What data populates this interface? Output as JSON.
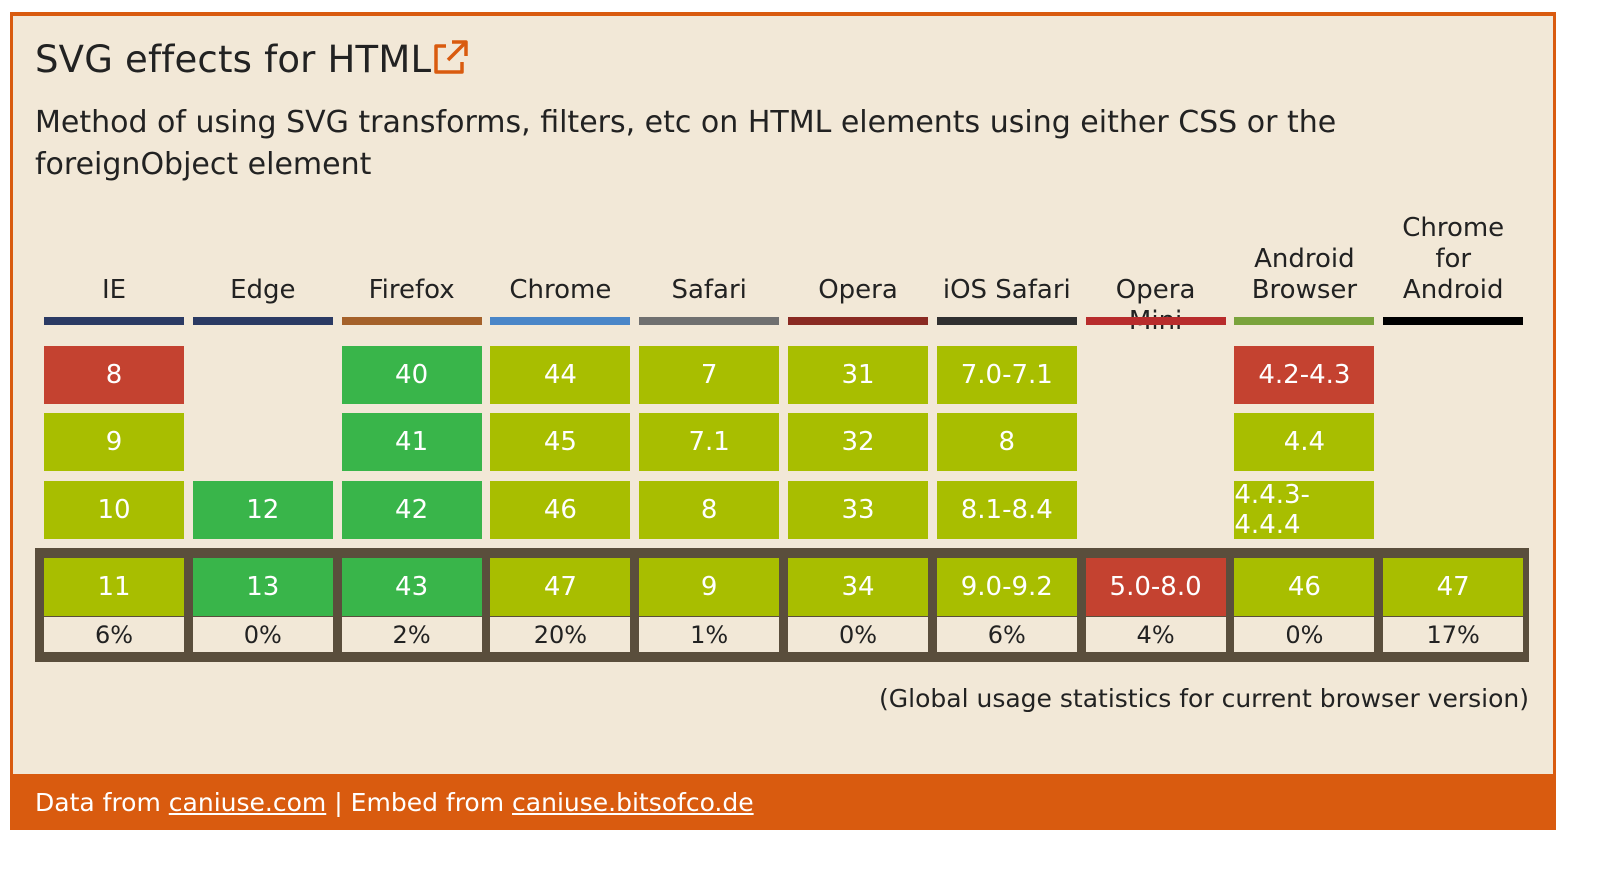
{
  "widget": {
    "title": "SVG effects for HTML",
    "description": "Method of using SVG transforms, filters, etc on HTML elements using either CSS or the foreignObject element",
    "external_link_icon": "external-link-icon",
    "note": "(Global usage statistics for current browser version)"
  },
  "colors": {
    "frame": "#d95b0f",
    "background": "#f2e8d7",
    "unsupported": "#c44230",
    "partial": "#a8be00",
    "supported": "#39b54a",
    "current_border": "#5a4e3c"
  },
  "browsers": [
    {
      "name": "IE",
      "color": "#2b3a63",
      "versions": [
        {
          "v": "8",
          "s": "red"
        },
        {
          "v": "9",
          "s": "lime"
        },
        {
          "v": "10",
          "s": "lime"
        }
      ],
      "current": {
        "v": "11",
        "s": "lime"
      },
      "usage": "6%"
    },
    {
      "name": "Edge",
      "color": "#2b3a63",
      "versions": [
        null,
        null,
        {
          "v": "12",
          "s": "green"
        }
      ],
      "current": {
        "v": "13",
        "s": "green"
      },
      "usage": "0%"
    },
    {
      "name": "Firefox",
      "color": "#a5612a",
      "versions": [
        {
          "v": "40",
          "s": "green"
        },
        {
          "v": "41",
          "s": "green"
        },
        {
          "v": "42",
          "s": "green"
        }
      ],
      "current": {
        "v": "43",
        "s": "green"
      },
      "usage": "2%"
    },
    {
      "name": "Chrome",
      "color": "#4a86c8",
      "versions": [
        {
          "v": "44",
          "s": "lime"
        },
        {
          "v": "45",
          "s": "lime"
        },
        {
          "v": "46",
          "s": "lime"
        }
      ],
      "current": {
        "v": "47",
        "s": "lime"
      },
      "usage": "20%"
    },
    {
      "name": "Safari",
      "color": "#707070",
      "versions": [
        {
          "v": "7",
          "s": "lime"
        },
        {
          "v": "7.1",
          "s": "lime"
        },
        {
          "v": "8",
          "s": "lime"
        }
      ],
      "current": {
        "v": "9",
        "s": "lime"
      },
      "usage": "1%"
    },
    {
      "name": "Opera",
      "color": "#8a2a22",
      "versions": [
        {
          "v": "31",
          "s": "lime"
        },
        {
          "v": "32",
          "s": "lime"
        },
        {
          "v": "33",
          "s": "lime"
        }
      ],
      "current": {
        "v": "34",
        "s": "lime"
      },
      "usage": "0%"
    },
    {
      "name": "iOS Safari",
      "color": "#303030",
      "versions": [
        {
          "v": "7.0-7.1",
          "s": "lime"
        },
        {
          "v": "8",
          "s": "lime"
        },
        {
          "v": "8.1-8.4",
          "s": "lime"
        }
      ],
      "current": {
        "v": "9.0-9.2",
        "s": "lime"
      },
      "usage": "6%"
    },
    {
      "name": "Opera Mini",
      "color": "#b82c2c",
      "versions": [
        null,
        null,
        null
      ],
      "current": {
        "v": "5.0-8.0",
        "s": "red"
      },
      "usage": "4%"
    },
    {
      "name": "Android Browser",
      "color": "#7aa33c",
      "versions": [
        {
          "v": "4.2-4.3",
          "s": "red"
        },
        {
          "v": "4.4",
          "s": "lime"
        },
        {
          "v": "4.4.3-4.4.4",
          "s": "lime"
        }
      ],
      "current": {
        "v": "46",
        "s": "lime"
      },
      "usage": "0%"
    },
    {
      "name": "Chrome for Android",
      "color": "#000000",
      "versions": [
        null,
        null,
        null
      ],
      "current": {
        "v": "47",
        "s": "lime"
      },
      "usage": "17%"
    }
  ],
  "footer": {
    "prefix": "Data from",
    "data_link": "caniuse.com",
    "separator": "|",
    "embed_prefix": "Embed from",
    "embed_link": "caniuse.bitsofco.de"
  }
}
